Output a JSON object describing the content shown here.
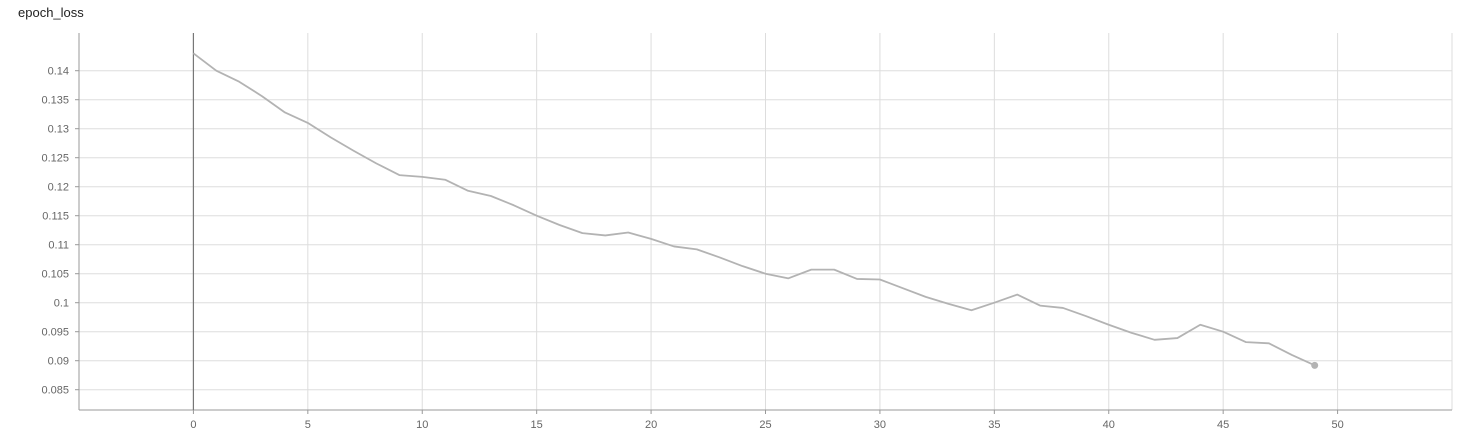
{
  "chart_data": {
    "type": "line",
    "title": "epoch_loss",
    "xlabel": "",
    "ylabel": "",
    "xlim": [
      -5,
      55
    ],
    "ylim": [
      0.0815,
      0.1465
    ],
    "x_ticks": [
      0,
      5,
      10,
      15,
      20,
      25,
      30,
      35,
      40,
      45,
      50
    ],
    "y_ticks": [
      0.085,
      0.09,
      0.095,
      0.1,
      0.105,
      0.11,
      0.115,
      0.12,
      0.125,
      0.13,
      0.135,
      0.14
    ],
    "x_tick_labels": [
      "0",
      "5",
      "10",
      "15",
      "20",
      "25",
      "30",
      "35",
      "40",
      "45",
      "50"
    ],
    "y_tick_labels": [
      "0.085",
      "0.09",
      "0.095",
      "0.1",
      "0.105",
      "0.11",
      "0.115",
      "0.12",
      "0.125",
      "0.13",
      "0.135",
      "0.14"
    ],
    "grid": true,
    "series": [
      {
        "color": "#b3b3b3",
        "x": [
          0,
          1,
          2,
          3,
          4,
          5,
          6,
          7,
          8,
          9,
          10,
          11,
          12,
          13,
          14,
          15,
          16,
          17,
          18,
          19,
          20,
          21,
          22,
          23,
          24,
          25,
          26,
          27,
          28,
          29,
          30,
          31,
          32,
          33,
          34,
          35,
          36,
          37,
          38,
          39,
          40,
          41,
          42,
          43,
          44,
          45,
          46,
          47,
          48,
          49
        ],
        "values": [
          0.143,
          0.14,
          0.1381,
          0.1356,
          0.1328,
          0.131,
          0.1285,
          0.1262,
          0.124,
          0.122,
          0.1217,
          0.1212,
          0.1193,
          0.1184,
          0.1168,
          0.115,
          0.1134,
          0.112,
          0.1116,
          0.1121,
          0.111,
          0.1097,
          0.1092,
          0.1078,
          0.1063,
          0.105,
          0.1042,
          0.1057,
          0.1057,
          0.1041,
          0.104,
          0.1025,
          0.101,
          0.0998,
          0.0987,
          0.1,
          0.1014,
          0.0995,
          0.0991,
          0.0977,
          0.0962,
          0.0948,
          0.0936,
          0.0939,
          0.0962,
          0.095,
          0.0932,
          0.093,
          0.091,
          0.0892
        ]
      }
    ],
    "axis_color": "#999999",
    "grid_color": "#dddddd",
    "origin_line_color": "#777777"
  }
}
